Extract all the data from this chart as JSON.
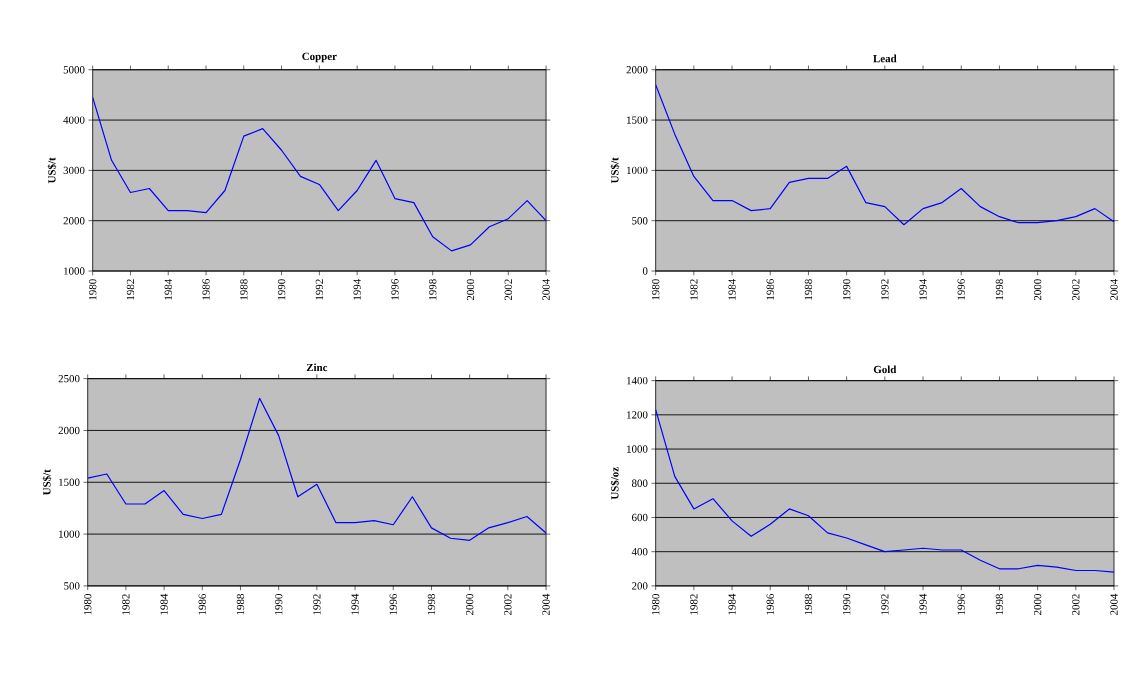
{
  "chart_data": [
    {
      "type": "line",
      "title": "Copper",
      "ylabel": "US$/t",
      "color": "#0000ff",
      "grid": "y",
      "x": [
        1980,
        1981,
        1982,
        1983,
        1984,
        1985,
        1986,
        1987,
        1988,
        1989,
        1990,
        1991,
        1992,
        1993,
        1994,
        1995,
        1996,
        1997,
        1998,
        1999,
        2000,
        2001,
        2002,
        2003,
        2004
      ],
      "values": [
        4450,
        3200,
        2560,
        2640,
        2200,
        2200,
        2160,
        2600,
        3680,
        3830,
        3400,
        2880,
        2720,
        2200,
        2600,
        3200,
        2440,
        2360,
        1680,
        1400,
        1520,
        1880,
        2040,
        2400,
        2000
      ],
      "xlim": [
        1980,
        2004
      ],
      "xticks": [
        1980,
        1982,
        1984,
        1986,
        1988,
        1990,
        1992,
        1994,
        1996,
        1998,
        2000,
        2002,
        2004
      ],
      "ylim": [
        1000,
        5000
      ],
      "yticks": [
        1000,
        2000,
        3000,
        4000,
        5000
      ]
    },
    {
      "type": "line",
      "title": "Lead",
      "ylabel": "US$/t",
      "color": "#0000ff",
      "grid": "y",
      "x": [
        1980,
        1981,
        1982,
        1983,
        1984,
        1985,
        1986,
        1987,
        1988,
        1989,
        1990,
        1991,
        1992,
        1993,
        1994,
        1995,
        1996,
        1997,
        1998,
        1999,
        2000,
        2001,
        2002,
        2003,
        2004
      ],
      "values": [
        1850,
        1360,
        940,
        700,
        700,
        600,
        620,
        880,
        920,
        920,
        1040,
        680,
        640,
        460,
        620,
        680,
        820,
        640,
        540,
        480,
        480,
        500,
        540,
        620,
        490
      ],
      "xlim": [
        1980,
        2004
      ],
      "xticks": [
        1980,
        1982,
        1984,
        1986,
        1988,
        1990,
        1992,
        1994,
        1996,
        1998,
        2000,
        2002,
        2004
      ],
      "ylim": [
        0,
        2000
      ],
      "yticks": [
        0,
        500,
        1000,
        1500,
        2000
      ]
    },
    {
      "type": "line",
      "title": "Zinc",
      "ylabel": "US$/t",
      "color": "#0000ff",
      "grid": "y",
      "x": [
        1980,
        1981,
        1982,
        1983,
        1984,
        1985,
        1986,
        1987,
        1988,
        1989,
        1990,
        1991,
        1992,
        1993,
        1994,
        1995,
        1996,
        1997,
        1998,
        1999,
        2000,
        2001,
        2002,
        2003,
        2004
      ],
      "values": [
        1540,
        1580,
        1290,
        1290,
        1420,
        1190,
        1150,
        1190,
        1720,
        2310,
        1950,
        1360,
        1480,
        1110,
        1110,
        1130,
        1090,
        1360,
        1060,
        960,
        940,
        1060,
        1110,
        1170,
        1010
      ],
      "xlim": [
        1980,
        2004
      ],
      "xticks": [
        1980,
        1982,
        1984,
        1986,
        1988,
        1990,
        1992,
        1994,
        1996,
        1998,
        2000,
        2002,
        2004
      ],
      "ylim": [
        500,
        2500
      ],
      "yticks": [
        500,
        1000,
        1500,
        2000,
        2500
      ]
    },
    {
      "type": "line",
      "title": "Gold",
      "ylabel": "US$/oz",
      "color": "#0000ff",
      "grid": "y",
      "x": [
        1980,
        1981,
        1982,
        1983,
        1984,
        1985,
        1986,
        1987,
        1988,
        1989,
        1990,
        1991,
        1992,
        1993,
        1994,
        1995,
        1996,
        1997,
        1998,
        1999,
        2000,
        2001,
        2002,
        2003,
        2004
      ],
      "values": [
        1230,
        840,
        650,
        710,
        580,
        490,
        560,
        650,
        610,
        510,
        480,
        440,
        400,
        410,
        420,
        410,
        410,
        350,
        300,
        300,
        320,
        310,
        290,
        290,
        280
      ],
      "xlim": [
        1980,
        2004
      ],
      "xticks": [
        1980,
        1982,
        1984,
        1986,
        1988,
        1990,
        1992,
        1994,
        1996,
        1998,
        2000,
        2002,
        2004
      ],
      "ylim": [
        200,
        1400
      ],
      "yticks": [
        200,
        400,
        600,
        800,
        1000,
        1200,
        1400
      ]
    }
  ]
}
